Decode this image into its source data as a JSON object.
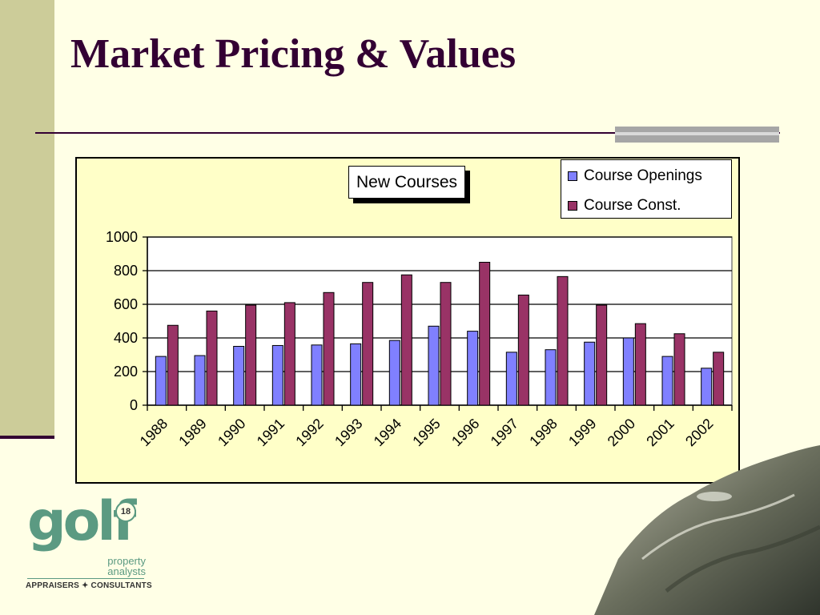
{
  "slide": {
    "title": "Market Pricing & Values"
  },
  "chart_data": {
    "type": "bar",
    "title": "New Courses",
    "categories": [
      "1988",
      "1989",
      "1990",
      "1991",
      "1992",
      "1993",
      "1994",
      "1995",
      "1996",
      "1997",
      "1998",
      "1999",
      "2000",
      "2001",
      "2002"
    ],
    "series": [
      {
        "name": "Course Openings",
        "color": "#8080ff",
        "values": [
          290,
          295,
          350,
          355,
          358,
          365,
          385,
          470,
          440,
          315,
          330,
          375,
          400,
          290,
          220
        ]
      },
      {
        "name": "Course Const.",
        "color": "#993366",
        "values": [
          475,
          560,
          595,
          610,
          670,
          730,
          775,
          730,
          850,
          655,
          765,
          595,
          485,
          425,
          315
        ]
      }
    ],
    "ylim": [
      0,
      1000
    ],
    "yticks": [
      0,
      200,
      400,
      600,
      800,
      1000
    ],
    "grid": true,
    "legend_position": "top-right",
    "plot_background": "#ffffff"
  },
  "logo": {
    "word": "golf",
    "badge": "18",
    "line1": "property",
    "line2": "analysts",
    "tagline": "APPRAISERS ✦ CONSULTANTS"
  },
  "colors": {
    "accent": "#330033",
    "band": "#cccc99",
    "background": "#ffffe6"
  }
}
